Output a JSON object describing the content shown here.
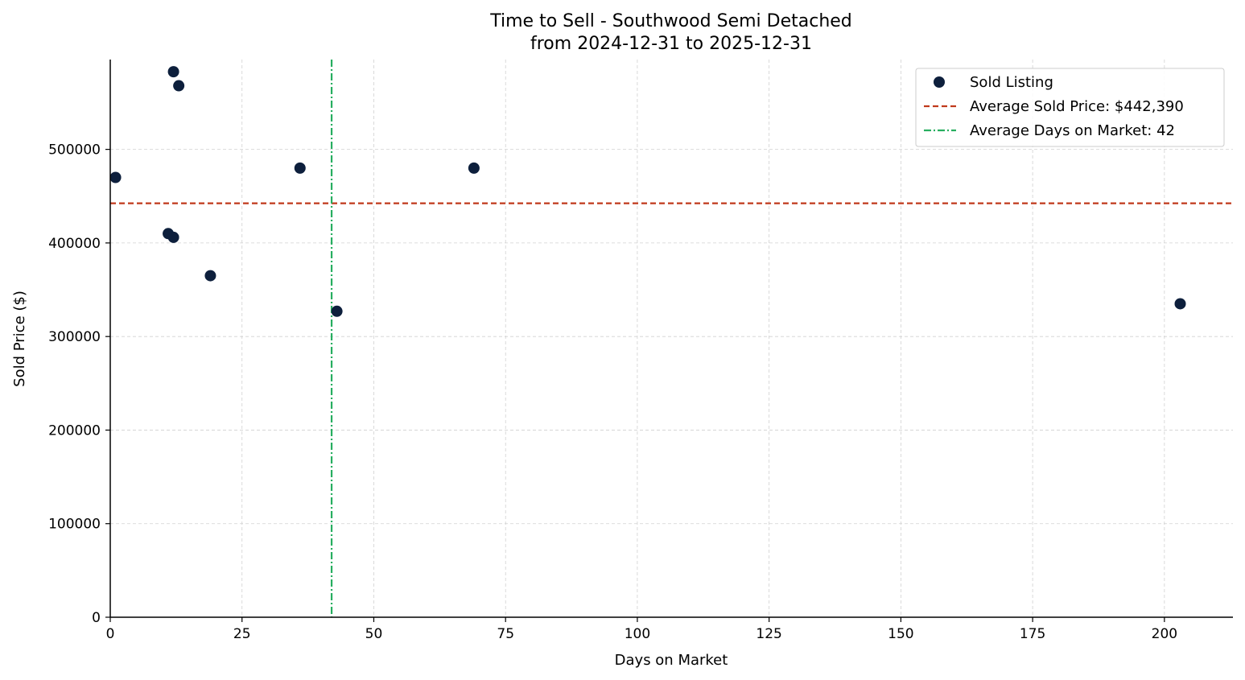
{
  "chart_data": {
    "type": "scatter",
    "title": "Time to Sell - Southwood Semi Detached",
    "subtitle": "from 2024-12-31 to 2025-12-31",
    "xlabel": "Days on Market",
    "ylabel": "Sold Price ($)",
    "xlim": [
      0,
      213
    ],
    "ylim": [
      0,
      596000
    ],
    "xticks": [
      0,
      25,
      50,
      75,
      100,
      125,
      150,
      175,
      200
    ],
    "yticks": [
      0,
      100000,
      200000,
      300000,
      400000,
      500000
    ],
    "grid": true,
    "legend_position": "top-right",
    "series": [
      {
        "name": "Sold Listing",
        "color": "#0d1f3c",
        "points": [
          {
            "x": 1,
            "y": 470000
          },
          {
            "x": 11,
            "y": 410000
          },
          {
            "x": 12,
            "y": 406000
          },
          {
            "x": 12,
            "y": 583000
          },
          {
            "x": 13,
            "y": 568000
          },
          {
            "x": 19,
            "y": 365000
          },
          {
            "x": 36,
            "y": 480000
          },
          {
            "x": 43,
            "y": 327000
          },
          {
            "x": 69,
            "y": 480000
          },
          {
            "x": 203,
            "y": 335000
          }
        ]
      }
    ],
    "reference_lines": [
      {
        "name": "Average Sold Price: $442,390",
        "orientation": "horizontal",
        "value": 442390,
        "color": "#c0391b",
        "style": "dashed"
      },
      {
        "name": "Average Days on Market: 42",
        "orientation": "vertical",
        "value": 42,
        "color": "#27ae60",
        "style": "dashdot"
      }
    ]
  }
}
